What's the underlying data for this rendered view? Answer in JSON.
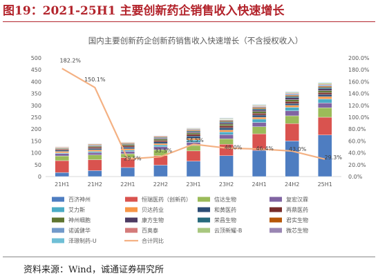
{
  "figure": {
    "label": "图19：",
    "heading": "2021-25H1 主要创新药企销售收入快速增长",
    "source": "资料来源：Wind，诚通证券研究所"
  },
  "chart_data": {
    "type": "bar",
    "stacked": true,
    "title": "国内主要创新药企创新药销售收入快速增长（不含授权收入）",
    "categories": [
      "21H1",
      "21H2",
      "22H1",
      "22H2",
      "23H1",
      "23H2",
      "24H1",
      "24H2",
      "25H1"
    ],
    "ylim": [
      0,
      500
    ],
    "y2lim": [
      0,
      200
    ],
    "y_ticks": [
      "0",
      "50",
      "100",
      "150",
      "200",
      "250",
      "300",
      "350",
      "400",
      "450",
      "500"
    ],
    "y2_ticks": [
      "0.0%",
      "20.0%",
      "40.0%",
      "60.0%",
      "80.0%",
      "100.0%",
      "120.0%",
      "140.0%",
      "160.0%",
      "180.0%",
      "200.0%"
    ],
    "grid": false,
    "legend_position": "bottom",
    "series": [
      {
        "name": "百济神州",
        "color": "#4e7dc1",
        "values": [
          17,
          25,
          38,
          48,
          65,
          88,
          110,
          150,
          175
        ]
      },
      {
        "name": "恒瑞医药（创新药）",
        "color": "#d9534f",
        "values": [
          50,
          46,
          42,
          40,
          43,
          48,
          70,
          73,
          75
        ]
      },
      {
        "name": "信达生物",
        "color": "#9bbb59",
        "values": [
          20,
          20,
          16,
          25,
          23,
          23,
          30,
          33,
          40
        ]
      },
      {
        "name": "复宏汉霖",
        "color": "#8064a2",
        "values": [
          10,
          10,
          10,
          13,
          13,
          18,
          18,
          21,
          20
        ]
      },
      {
        "name": "艾力斯",
        "color": "#4bacc6",
        "values": [
          3,
          5,
          5,
          7,
          10,
          11,
          14,
          15,
          17
        ]
      },
      {
        "name": "贝达药业",
        "color": "#f79646",
        "values": [
          6,
          6,
          6,
          6,
          7,
          8,
          8,
          8,
          10
        ]
      },
      {
        "name": "和黄医药",
        "color": "#2c4d75",
        "values": [
          5,
          6,
          7,
          7,
          10,
          10,
          9,
          8,
          9
        ]
      },
      {
        "name": "再鼎医药",
        "color": "#772c2a",
        "values": [
          5,
          6,
          6,
          6,
          7,
          8,
          8,
          8,
          8
        ]
      },
      {
        "name": "神州细胞",
        "color": "#5f7530",
        "values": [
          3,
          4,
          5,
          6,
          6,
          7,
          7,
          8,
          8
        ]
      },
      {
        "name": "康方生物",
        "color": "#4d3b62",
        "values": [
          2,
          3,
          3,
          4,
          5,
          6,
          7,
          8,
          8
        ]
      },
      {
        "name": "荣昌生物",
        "color": "#276a7c",
        "values": [
          1,
          2,
          2,
          3,
          4,
          5,
          5,
          6,
          6
        ]
      },
      {
        "name": "君实生物",
        "color": "#b65708",
        "values": [
          2,
          3,
          3,
          3,
          4,
          4,
          5,
          5,
          5
        ]
      },
      {
        "name": "诺诚健华",
        "color": "#729aca",
        "values": [
          1,
          2,
          2,
          2,
          3,
          3,
          4,
          5,
          5
        ]
      },
      {
        "name": "百奥泰",
        "color": "#d47b7a",
        "values": [
          1,
          1,
          1,
          2,
          2,
          2,
          3,
          3,
          3
        ]
      },
      {
        "name": "云顶新耀-B",
        "color": "#a8c77f",
        "values": [
          0,
          0,
          1,
          1,
          2,
          3,
          3,
          3,
          4
        ]
      },
      {
        "name": "微芯生物",
        "color": "#9a86b3",
        "values": [
          1,
          1,
          1,
          1,
          2,
          2,
          2,
          2,
          2
        ]
      },
      {
        "name": "泽璟制药-U",
        "color": "#6fbfd6",
        "values": [
          0,
          0,
          1,
          1,
          1,
          2,
          2,
          2,
          2
        ]
      }
    ],
    "line": {
      "name": "合计同比",
      "axis": "right",
      "color": "#f4b183",
      "values": [
        182.2,
        150.1,
        29.5,
        33.5,
        54.5,
        48.0,
        46.4,
        43.0,
        29.3
      ],
      "labels": [
        "182.2%",
        "150.1%",
        "29.5%",
        "33.5%",
        "54.5%",
        "48.0%",
        "46.4%",
        "43.0%",
        "29.3%"
      ]
    }
  }
}
